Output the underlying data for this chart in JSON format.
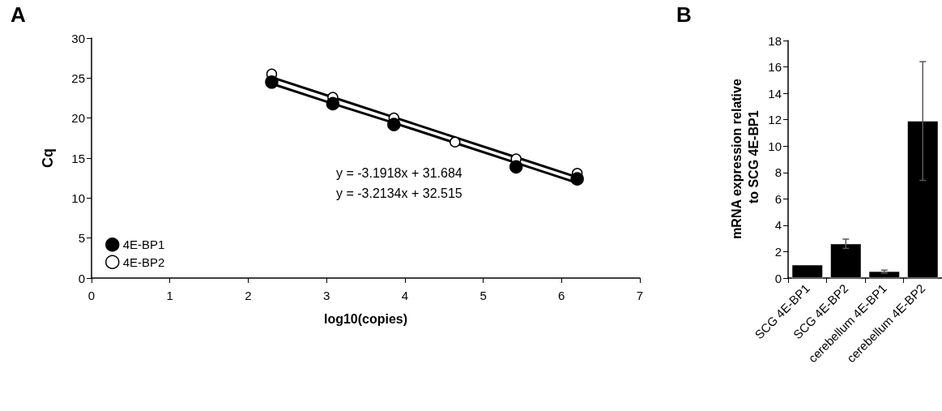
{
  "chart_data": [
    {
      "type": "scatter",
      "title": "A",
      "xlabel": "log10(copies)",
      "ylabel": "Cq",
      "xlim": [
        0,
        7
      ],
      "xticks": [
        0,
        1,
        2,
        3,
        4,
        5,
        6,
        7
      ],
      "ylim": [
        0,
        30
      ],
      "yticks": [
        0,
        5,
        10,
        15,
        20,
        25,
        30
      ],
      "grid": false,
      "legend": "bottom left",
      "x": [
        2.3,
        3.08,
        3.86,
        4.64,
        5.42,
        6.2
      ],
      "series": [
        {
          "name": "4E-BP1",
          "color": "#000000",
          "marker": "circle",
          "values": [
            24.5,
            21.8,
            19.2,
            null,
            13.9,
            12.4
          ]
        },
        {
          "name": "4E-BP2",
          "color": "#ffffff",
          "marker": "circle",
          "values": [
            25.5,
            22.6,
            20.0,
            17.0,
            14.9,
            13.1
          ]
        },
        {
          "type": "line",
          "color": "#000000",
          "marker": "none",
          "values": [
            24.3,
            21.8,
            19.4,
            16.9,
            14.4,
            11.9
          ],
          "line_style": "solid"
        },
        {
          "type": "line",
          "color": "#000000",
          "marker": "none",
          "values": [
            25.1,
            22.6,
            20.1,
            17.6,
            15.1,
            12.6
          ],
          "line_style": "solid"
        }
      ],
      "annotations": [
        "y = -3.1918x + 31.684",
        "y = -3.2134x + 32.515"
      ]
    },
    {
      "type": "bar",
      "title": "B",
      "ylabel": "mRNA expression relative to SCG 4E-BP1",
      "categories": [
        "SCG 4E-BP1",
        "SCG 4E-BP2",
        "cerebellum 4E-BP1",
        "cerebellum 4E-BP2"
      ],
      "values": [
        1.0,
        2.6,
        0.5,
        11.9
      ],
      "color": "#000000",
      "errors": [
        null,
        [
          2.25,
          2.95
        ],
        [
          0.38,
          0.6
        ],
        [
          7.4,
          16.4
        ]
      ],
      "ylim": [
        0,
        18
      ],
      "yticks": [
        0,
        2,
        4,
        6,
        8,
        10,
        12,
        14,
        16,
        18
      ],
      "grid": false,
      "legend": false
    }
  ]
}
